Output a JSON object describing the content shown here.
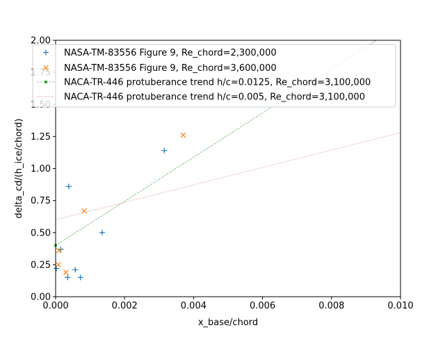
{
  "chart_data": {
    "type": "scatter",
    "xlabel": "x_base/chord",
    "ylabel": "delta_cd/(h_ice/chord)",
    "xlim": [
      0,
      0.01
    ],
    "ylim": [
      0,
      2.0
    ],
    "x_ticks": [
      "0.000",
      "0.002",
      "0.004",
      "0.006",
      "0.008",
      "0.010"
    ],
    "y_ticks": [
      "0.00",
      "0.25",
      "0.50",
      "0.75",
      "1.00",
      "1.25",
      "1.50",
      "1.75",
      "2.00"
    ],
    "grid": false,
    "legend_placement": "top",
    "series": [
      {
        "name": "NASA-TM-83556 Figure 9, Re_chord=2,300,000",
        "marker": "plus",
        "color": "#1f77b4",
        "points": [
          {
            "x": 2e-05,
            "y": 0.22
          },
          {
            "x": 0.00015,
            "y": 0.37
          },
          {
            "x": 0.00035,
            "y": 0.15
          },
          {
            "x": 0.00038,
            "y": 0.86
          },
          {
            "x": 0.00057,
            "y": 0.21
          },
          {
            "x": 0.00072,
            "y": 0.15
          },
          {
            "x": 0.00135,
            "y": 0.5
          },
          {
            "x": 0.00315,
            "y": 1.14
          }
        ]
      },
      {
        "name": "NASA-TM-83556 Figure 9, Re_chord=3,600,000",
        "marker": "x",
        "color": "#ff7f0e",
        "points": [
          {
            "x": 8e-05,
            "y": 0.25
          },
          {
            "x": 0.0001,
            "y": 0.36
          },
          {
            "x": 0.0003,
            "y": 0.19
          },
          {
            "x": 0.00083,
            "y": 0.67
          },
          {
            "x": 0.0037,
            "y": 1.26
          }
        ]
      },
      {
        "name": "NACA-TR-446 protuberance trend h/c=0.0125, Re_chord=3,100,000",
        "marker": "dot-dashed-line",
        "color": "#2ca02c",
        "points": [
          {
            "x": 0.0,
            "y": 0.4
          },
          {
            "x": 0.0093,
            "y": 2.0
          }
        ]
      },
      {
        "name": "NACA-TR-446 protuberance trend h/c=0.005, Re_chord=3,100,000",
        "marker": "dotted-line",
        "color": "#d62728",
        "points": [
          {
            "x": 0.0,
            "y": 0.6
          },
          {
            "x": 0.01,
            "y": 1.28
          }
        ]
      }
    ]
  }
}
